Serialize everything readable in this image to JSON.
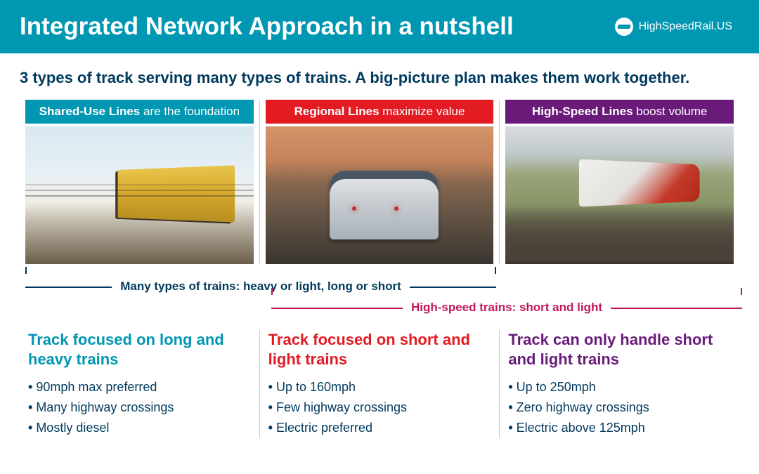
{
  "header": {
    "title": "Integrated Network Approach in a nutshell",
    "brand": "HighSpeedRail.US"
  },
  "subtitle": "3 types of track serving many types of trains. A big-picture plan makes them work together.",
  "columns": [
    {
      "header_bold": "Shared-Use Lines",
      "header_light": " are the foundation",
      "bg_color": "#0097b2",
      "image_alt": "freight-train-snow"
    },
    {
      "header_bold": "Regional Lines",
      "header_light": " maximize value",
      "bg_color": "#e31b23",
      "image_alt": "regional-train-station"
    },
    {
      "header_bold": "High-Speed Lines",
      "header_light": " boost volume",
      "bg_color": "#6a1b7a",
      "image_alt": "high-speed-train-countryside"
    }
  ],
  "brackets": {
    "top_label": "Many types of trains: heavy or light, long or short",
    "top_color": "#003a5d",
    "bottom_label": "High-speed trains: short and light",
    "bottom_color": "#c2185b"
  },
  "details": [
    {
      "heading": "Track focused on long and heavy trains",
      "heading_color": "#0097b2",
      "bullets": [
        "90mph max preferred",
        "Many highway crossings",
        "Mostly diesel"
      ]
    },
    {
      "heading": "Track focused on short and light trains",
      "heading_color": "#e31b23",
      "bullets": [
        "Up to 160mph",
        "Few highway crossings",
        "Electric preferred"
      ]
    },
    {
      "heading": "Track can only handle short and light trains",
      "heading_color": "#6a1b7a",
      "bullets": [
        "Up to 250mph",
        "Zero highway crossings",
        "Electric above 125mph"
      ]
    }
  ],
  "styling": {
    "header_bg": "#0097b2",
    "subtitle_color": "#003a5d",
    "bullet_text_color": "#003a5d",
    "divider_color": "#cccccc",
    "page_bg": "#ffffff"
  }
}
